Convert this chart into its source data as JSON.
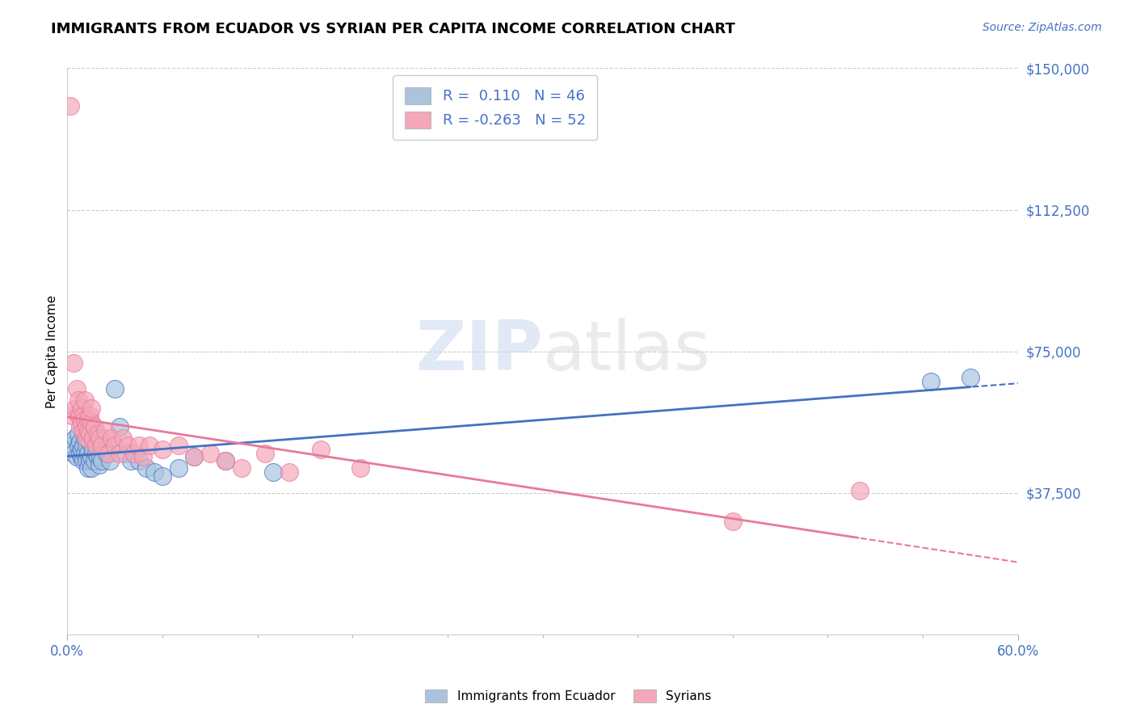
{
  "title": "IMMIGRANTS FROM ECUADOR VS SYRIAN PER CAPITA INCOME CORRELATION CHART",
  "source_text": "Source: ZipAtlas.com",
  "ylabel": "Per Capita Income",
  "xlim": [
    0.0,
    0.6
  ],
  "ylim": [
    0,
    150000
  ],
  "yticks": [
    37500,
    75000,
    112500,
    150000
  ],
  "ytick_labels": [
    "$37,500",
    "$75,000",
    "$112,500",
    "$150,000"
  ],
  "watermark_zip": "ZIP",
  "watermark_atlas": "atlas",
  "legend_label1": "Immigrants from Ecuador",
  "legend_label2": "Syrians",
  "color_ecuador": "#aac4e0",
  "color_ecuador_line": "#4472c4",
  "color_syrian": "#f4a7b9",
  "color_syrian_line": "#e8799a",
  "color_blue": "#4472c4",
  "ecuador_x": [
    0.003,
    0.004,
    0.005,
    0.006,
    0.007,
    0.007,
    0.008,
    0.008,
    0.009,
    0.009,
    0.01,
    0.01,
    0.011,
    0.011,
    0.012,
    0.012,
    0.013,
    0.013,
    0.014,
    0.014,
    0.015,
    0.015,
    0.016,
    0.017,
    0.018,
    0.019,
    0.02,
    0.021,
    0.022,
    0.023,
    0.025,
    0.027,
    0.03,
    0.033,
    0.037,
    0.04,
    0.045,
    0.05,
    0.055,
    0.06,
    0.07,
    0.08,
    0.1,
    0.13,
    0.545,
    0.57
  ],
  "ecuador_y": [
    50000,
    48000,
    52000,
    47000,
    50000,
    53000,
    48000,
    51000,
    47000,
    49000,
    50000,
    46000,
    48000,
    52000,
    46000,
    50000,
    48000,
    44000,
    46000,
    51000,
    47000,
    44000,
    49000,
    46000,
    48000,
    47000,
    45000,
    47000,
    46000,
    50000,
    48000,
    46000,
    65000,
    55000,
    48000,
    46000,
    46000,
    44000,
    43000,
    42000,
    44000,
    47000,
    46000,
    43000,
    67000,
    68000
  ],
  "syrian_x": [
    0.002,
    0.003,
    0.004,
    0.005,
    0.006,
    0.007,
    0.007,
    0.008,
    0.008,
    0.009,
    0.009,
    0.01,
    0.01,
    0.011,
    0.011,
    0.012,
    0.012,
    0.013,
    0.013,
    0.014,
    0.014,
    0.015,
    0.015,
    0.016,
    0.017,
    0.018,
    0.019,
    0.02,
    0.022,
    0.024,
    0.026,
    0.028,
    0.03,
    0.033,
    0.035,
    0.038,
    0.042,
    0.045,
    0.048,
    0.052,
    0.06,
    0.07,
    0.08,
    0.09,
    0.1,
    0.11,
    0.125,
    0.14,
    0.16,
    0.185,
    0.42,
    0.5
  ],
  "syrian_y": [
    140000,
    58000,
    72000,
    60000,
    65000,
    58000,
    62000,
    55000,
    58000,
    60000,
    56000,
    54000,
    58000,
    57000,
    62000,
    55000,
    52000,
    57000,
    54000,
    58000,
    53000,
    56000,
    60000,
    52000,
    55000,
    50000,
    53000,
    52000,
    50000,
    54000,
    48000,
    52000,
    50000,
    48000,
    52000,
    50000,
    48000,
    50000,
    47000,
    50000,
    49000,
    50000,
    47000,
    48000,
    46000,
    44000,
    48000,
    43000,
    49000,
    44000,
    30000,
    38000
  ]
}
